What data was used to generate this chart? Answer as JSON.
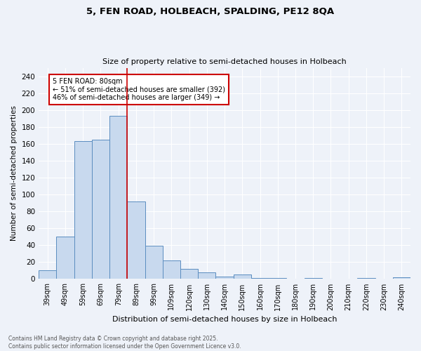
{
  "title_line1": "5, FEN ROAD, HOLBEACH, SPALDING, PE12 8QA",
  "title_line2": "Size of property relative to semi-detached houses in Holbeach",
  "xlabel": "Distribution of semi-detached houses by size in Holbeach",
  "ylabel": "Number of semi-detached properties",
  "categories": [
    "39sqm",
    "49sqm",
    "59sqm",
    "69sqm",
    "79sqm",
    "89sqm",
    "99sqm",
    "109sqm",
    "120sqm",
    "130sqm",
    "140sqm",
    "150sqm",
    "160sqm",
    "170sqm",
    "180sqm",
    "190sqm",
    "200sqm",
    "210sqm",
    "220sqm",
    "230sqm",
    "240sqm"
  ],
  "values": [
    10,
    50,
    163,
    165,
    193,
    92,
    39,
    22,
    12,
    8,
    3,
    5,
    1,
    1,
    0,
    1,
    0,
    0,
    1,
    0,
    2
  ],
  "bar_color": "#c8d9ee",
  "bar_edge_color": "#5b8dc0",
  "highlight_index": 4,
  "highlight_line_color": "#cc0000",
  "annotation_text": "5 FEN ROAD: 80sqm\n← 51% of semi-detached houses are smaller (392)\n46% of semi-detached houses are larger (349) →",
  "annotation_box_color": "#ffffff",
  "annotation_border_color": "#cc0000",
  "ylim": [
    0,
    250
  ],
  "yticks": [
    0,
    20,
    40,
    60,
    80,
    100,
    120,
    140,
    160,
    180,
    200,
    220,
    240
  ],
  "background_color": "#eef2f9",
  "grid_color": "#ffffff",
  "footer_line1": "Contains HM Land Registry data © Crown copyright and database right 2025.",
  "footer_line2": "Contains public sector information licensed under the Open Government Licence v3.0."
}
